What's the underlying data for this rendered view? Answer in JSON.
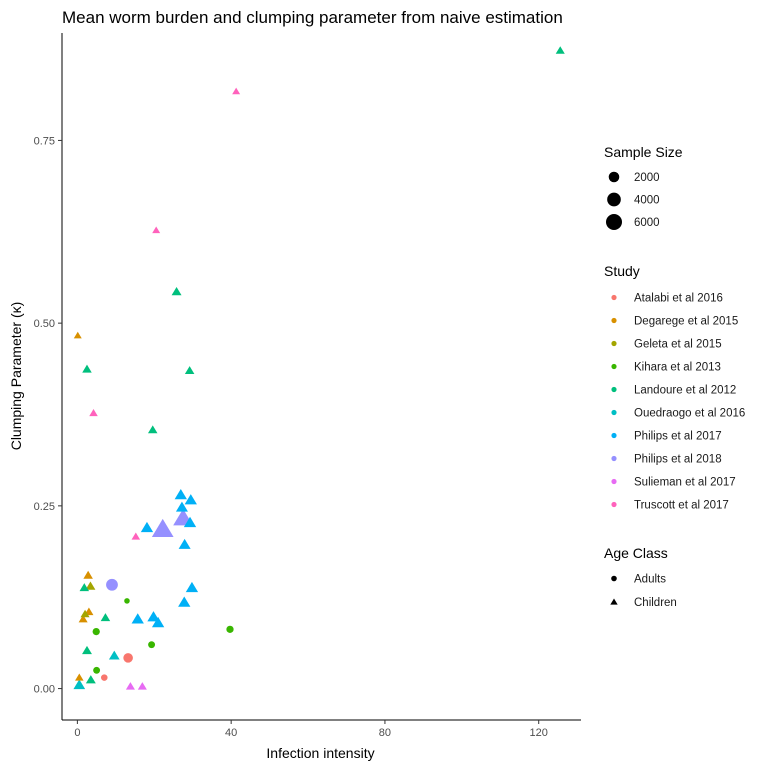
{
  "chart_data": {
    "type": "scatter",
    "title": "Mean worm burden and clumping parameter from naive estimation",
    "xlabel": "Infection intensity",
    "ylabel": "Clumping Parameter (κ)",
    "xlim": [
      -4,
      131
    ],
    "ylim": [
      -0.043,
      0.897
    ],
    "x_ticks": [
      0,
      40,
      80,
      120
    ],
    "x_tick_labels": [
      "0",
      "40",
      "80",
      "120"
    ],
    "y_ticks": [
      0.0,
      0.25,
      0.5,
      0.75
    ],
    "y_tick_labels": [
      "0.00",
      "0.25",
      "0.50",
      "0.75"
    ],
    "grid": false,
    "legend_position": "right",
    "size_legend": {
      "title": "Sample Size",
      "entries": [
        {
          "label": "2000",
          "value": 2000
        },
        {
          "label": "4000",
          "value": 4000
        },
        {
          "label": "6000",
          "value": 6000
        }
      ]
    },
    "color_legend": {
      "title": "Study",
      "entries": [
        {
          "label": "Atalabi et al 2016",
          "color": "#F8766D"
        },
        {
          "label": "Degarege et al 2015",
          "color": "#D89000"
        },
        {
          "label": "Geleta et al 2015",
          "color": "#A3A500"
        },
        {
          "label": "Kihara et al 2013",
          "color": "#39B600"
        },
        {
          "label": "Landoure et al 2012",
          "color": "#00BF7D"
        },
        {
          "label": "Ouedraogo et al 2016",
          "color": "#00BFC4"
        },
        {
          "label": "Philips et al 2017",
          "color": "#00B0F6"
        },
        {
          "label": "Philips et al 2018",
          "color": "#9590FF"
        },
        {
          "label": "Sulieman et al 2017",
          "color": "#E76BF3"
        },
        {
          "label": "Truscott et al 2017",
          "color": "#FF62BC"
        }
      ]
    },
    "shape_legend": {
      "title": "Age Class",
      "entries": [
        {
          "label": "Adults",
          "shape": "circle"
        },
        {
          "label": "Children",
          "shape": "triangle"
        }
      ]
    },
    "points": [
      {
        "study": "Atalabi et al 2016",
        "age": "Adults",
        "x": 13.2,
        "y": 0.042,
        "size": 1500
      },
      {
        "study": "Atalabi et al 2016",
        "age": "Adults",
        "x": 7.0,
        "y": 0.015,
        "size": 400
      },
      {
        "study": "Degarege et al 2015",
        "age": "Children",
        "x": 0.1,
        "y": 0.483,
        "size": 300
      },
      {
        "study": "Degarege et al 2015",
        "age": "Children",
        "x": 2.8,
        "y": 0.155,
        "size": 600
      },
      {
        "study": "Degarege et al 2015",
        "age": "Children",
        "x": 3.0,
        "y": 0.105,
        "size": 500
      },
      {
        "study": "Degarege et al 2015",
        "age": "Children",
        "x": 1.5,
        "y": 0.095,
        "size": 500
      },
      {
        "study": "Degarege et al 2015",
        "age": "Children",
        "x": 0.5,
        "y": 0.015,
        "size": 400
      },
      {
        "study": "Geleta et al 2015",
        "age": "Children",
        "x": 3.4,
        "y": 0.14,
        "size": 700
      },
      {
        "study": "Geleta et al 2015",
        "age": "Children",
        "x": 2.0,
        "y": 0.102,
        "size": 500
      },
      {
        "study": "Kihara et al 2013",
        "age": "Adults",
        "x": 4.9,
        "y": 0.078,
        "size": 600
      },
      {
        "study": "Kihara et al 2013",
        "age": "Adults",
        "x": 12.9,
        "y": 0.12,
        "size": 200
      },
      {
        "study": "Kihara et al 2013",
        "age": "Adults",
        "x": 19.3,
        "y": 0.06,
        "size": 500
      },
      {
        "study": "Kihara et al 2013",
        "age": "Adults",
        "x": 39.7,
        "y": 0.081,
        "size": 600
      },
      {
        "study": "Kihara et al 2013",
        "age": "Adults",
        "x": 5.0,
        "y": 0.025,
        "size": 500
      },
      {
        "study": "Landoure et al 2012",
        "age": "Children",
        "x": 125.6,
        "y": 0.873,
        "size": 500
      },
      {
        "study": "Landoure et al 2012",
        "age": "Children",
        "x": 25.8,
        "y": 0.543,
        "size": 700
      },
      {
        "study": "Landoure et al 2012",
        "age": "Children",
        "x": 2.5,
        "y": 0.437,
        "size": 600
      },
      {
        "study": "Landoure et al 2012",
        "age": "Children",
        "x": 29.2,
        "y": 0.435,
        "size": 600
      },
      {
        "study": "Landoure et al 2012",
        "age": "Children",
        "x": 19.6,
        "y": 0.354,
        "size": 600
      },
      {
        "study": "Landoure et al 2012",
        "age": "Children",
        "x": 1.8,
        "y": 0.138,
        "size": 600
      },
      {
        "study": "Landoure et al 2012",
        "age": "Children",
        "x": 7.3,
        "y": 0.097,
        "size": 600
      },
      {
        "study": "Landoure et al 2012",
        "age": "Children",
        "x": 2.5,
        "y": 0.052,
        "size": 700
      },
      {
        "study": "Landoure et al 2012",
        "age": "Children",
        "x": 3.5,
        "y": 0.012,
        "size": 700
      },
      {
        "study": "Ouedraogo et al 2016",
        "age": "Children",
        "x": 9.6,
        "y": 0.045,
        "size": 900
      },
      {
        "study": "Ouedraogo et al 2016",
        "age": "Children",
        "x": 0.5,
        "y": 0.005,
        "size": 1200
      },
      {
        "study": "Philips et al 2017",
        "age": "Children",
        "x": 26.9,
        "y": 0.265,
        "size": 1400
      },
      {
        "study": "Philips et al 2017",
        "age": "Children",
        "x": 29.5,
        "y": 0.258,
        "size": 1400
      },
      {
        "study": "Philips et al 2017",
        "age": "Children",
        "x": 27.2,
        "y": 0.248,
        "size": 1300
      },
      {
        "study": "Philips et al 2017",
        "age": "Children",
        "x": 18.1,
        "y": 0.22,
        "size": 1400
      },
      {
        "study": "Philips et al 2017",
        "age": "Children",
        "x": 29.3,
        "y": 0.227,
        "size": 1400
      },
      {
        "study": "Philips et al 2017",
        "age": "Children",
        "x": 27.9,
        "y": 0.197,
        "size": 1300
      },
      {
        "study": "Philips et al 2017",
        "age": "Children",
        "x": 29.8,
        "y": 0.138,
        "size": 1400
      },
      {
        "study": "Philips et al 2017",
        "age": "Children",
        "x": 27.8,
        "y": 0.118,
        "size": 1400
      },
      {
        "study": "Philips et al 2017",
        "age": "Children",
        "x": 15.7,
        "y": 0.095,
        "size": 1400
      },
      {
        "study": "Philips et al 2017",
        "age": "Children",
        "x": 19.8,
        "y": 0.098,
        "size": 1400
      },
      {
        "study": "Philips et al 2017",
        "age": "Children",
        "x": 21.0,
        "y": 0.09,
        "size": 1400
      },
      {
        "study": "Philips et al 2018",
        "age": "Adults",
        "x": 9.0,
        "y": 0.142,
        "size": 2700
      },
      {
        "study": "Philips et al 2018",
        "age": "Children",
        "x": 22.2,
        "y": 0.218,
        "size": 6500
      },
      {
        "study": "Philips et al 2018",
        "age": "Children",
        "x": 27.5,
        "y": 0.233,
        "size": 5200
      },
      {
        "study": "Sulieman et al 2017",
        "age": "Children",
        "x": 13.8,
        "y": 0.003,
        "size": 500
      },
      {
        "study": "Sulieman et al 2017",
        "age": "Children",
        "x": 16.9,
        "y": 0.003,
        "size": 500
      },
      {
        "study": "Truscott et al 2017",
        "age": "Children",
        "x": 41.3,
        "y": 0.817,
        "size": 300
      },
      {
        "study": "Truscott et al 2017",
        "age": "Children",
        "x": 20.5,
        "y": 0.627,
        "size": 300
      },
      {
        "study": "Truscott et al 2017",
        "age": "Children",
        "x": 4.2,
        "y": 0.377,
        "size": 400
      },
      {
        "study": "Truscott et al 2017",
        "age": "Children",
        "x": 15.2,
        "y": 0.208,
        "size": 400
      }
    ]
  }
}
